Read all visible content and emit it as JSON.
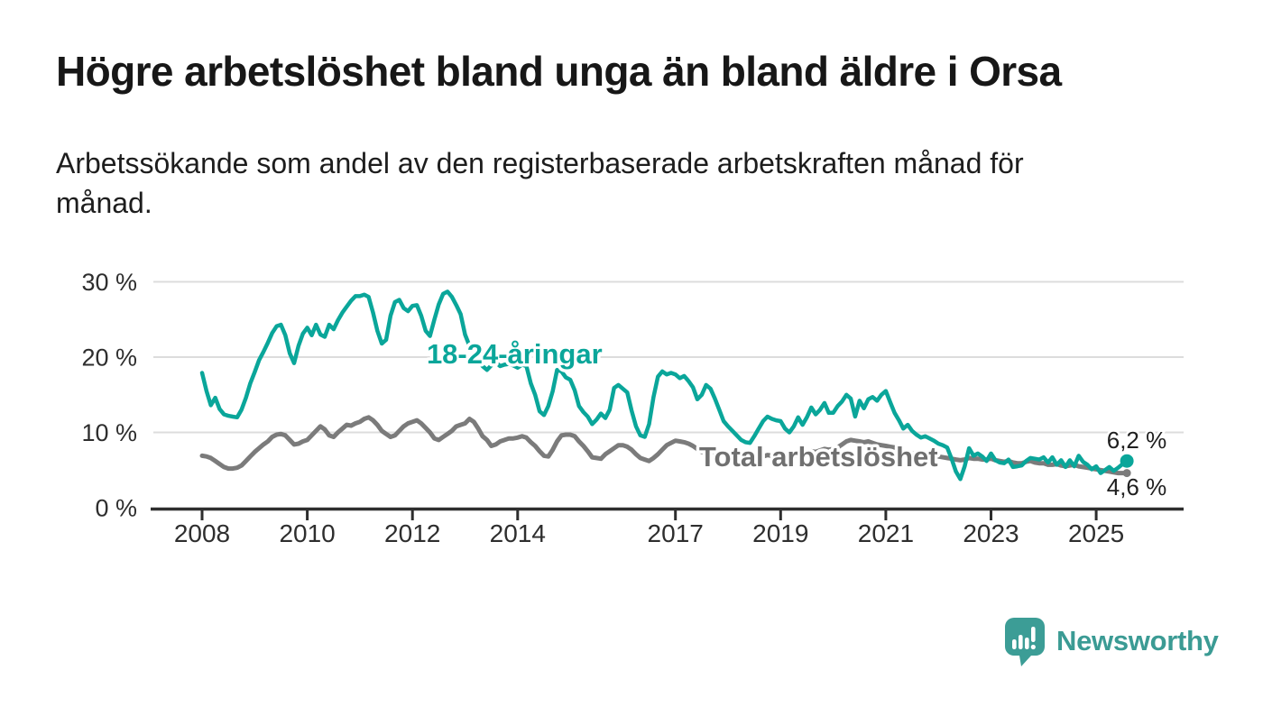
{
  "header": {
    "title": "Högre arbetslöshet bland unga än bland äldre i Orsa",
    "subtitle_line1": "Arbetssökande som andel av den registerbaserade arbetskraften månad för",
    "subtitle_line2": "månad."
  },
  "chart_data": {
    "type": "line",
    "unit": "%",
    "title": "Högre arbetslöshet bland unga än bland äldre i Orsa",
    "x_start_year": 2008,
    "points_per_year": 12,
    "xlim": [
      2007.85,
      2026.0
    ],
    "ylim": [
      0,
      32
    ],
    "grid": "horizontal",
    "grid_color": "#dcdcdc",
    "axis_color": "#2e2e2e",
    "tick_label_color": "#2e2e2e",
    "xticks": [
      {
        "value": 2008,
        "label": "2008"
      },
      {
        "value": 2010,
        "label": "2010"
      },
      {
        "value": 2012,
        "label": "2012"
      },
      {
        "value": 2014,
        "label": "2014"
      },
      {
        "value": 2017,
        "label": "2017"
      },
      {
        "value": 2019,
        "label": "2019"
      },
      {
        "value": 2021,
        "label": "2021"
      },
      {
        "value": 2023,
        "label": "2023"
      },
      {
        "value": 2025,
        "label": "2025"
      }
    ],
    "yticks": [
      {
        "value": 0,
        "label": "0 %"
      },
      {
        "value": 10,
        "label": "10 %"
      },
      {
        "value": 20,
        "label": "20 %"
      },
      {
        "value": 30,
        "label": "30 %"
      }
    ],
    "series": [
      {
        "name": "18-24-åringar",
        "color": "#0aa69a",
        "stroke_width": 4.5,
        "end_dot_radius": 7.5,
        "end_value_label": "6,2 %",
        "values": [
          17.9,
          15.5,
          13.6,
          14.6,
          13.1,
          12.4,
          12.2,
          12.1,
          12.0,
          13.0,
          14.6,
          16.5,
          18.0,
          19.6,
          20.7,
          21.9,
          23.2,
          24.1,
          24.3,
          22.9,
          20.5,
          19.2,
          21.5,
          23.1,
          23.9,
          22.9,
          24.3,
          23.0,
          22.7,
          24.3,
          23.7,
          24.9,
          25.9,
          26.7,
          27.5,
          28.1,
          28.1,
          28.3,
          28.0,
          25.9,
          23.5,
          21.8,
          22.3,
          25.5,
          27.3,
          27.6,
          26.5,
          26.1,
          26.8,
          26.9,
          25.5,
          23.5,
          22.8,
          25.0,
          27.0,
          28.4,
          28.7,
          28.0,
          26.9,
          25.7,
          23.0,
          21.5,
          20.5,
          19.5,
          18.8,
          18.3,
          18.9,
          19.3,
          18.8,
          19.0,
          19.1,
          18.9,
          18.6,
          19.0,
          18.8,
          16.5,
          15.0,
          12.8,
          12.3,
          13.5,
          15.5,
          18.3,
          18.1,
          17.3,
          17.0,
          15.6,
          13.5,
          12.7,
          12.1,
          11.1,
          11.7,
          12.5,
          11.9,
          13.0,
          15.9,
          16.3,
          15.8,
          15.3,
          12.9,
          10.8,
          9.6,
          9.4,
          11.1,
          14.7,
          17.4,
          18.1,
          17.7,
          17.9,
          17.7,
          17.2,
          17.5,
          16.8,
          16.0,
          14.4,
          15.0,
          16.3,
          15.8,
          14.5,
          13.0,
          11.5,
          10.8,
          10.2,
          9.6,
          9.0,
          8.7,
          8.6,
          9.5,
          10.5,
          11.5,
          12.1,
          11.8,
          11.6,
          11.5,
          10.5,
          10.0,
          10.8,
          12.0,
          11.0,
          12.0,
          13.3,
          12.4,
          13.0,
          13.9,
          12.6,
          12.6,
          13.5,
          14.1,
          15.0,
          14.5,
          12.1,
          14.2,
          13.2,
          14.4,
          14.7,
          14.2,
          15.0,
          15.5,
          14.0,
          12.6,
          11.6,
          10.5,
          11.0,
          10.2,
          9.7,
          9.3,
          9.5,
          9.2,
          8.9,
          8.5,
          8.3,
          8.0,
          6.5,
          4.8,
          3.8,
          5.5,
          7.9,
          6.9,
          7.2,
          6.8,
          6.2,
          7.2,
          6.3,
          6.0,
          5.9,
          6.4,
          5.4,
          5.5,
          5.6,
          6.2,
          6.6,
          6.5,
          6.4,
          6.7,
          6.0,
          6.7,
          5.7,
          6.3,
          5.4,
          6.3,
          5.5,
          6.9,
          6.1,
          5.7,
          5.1,
          5.5,
          4.6,
          5.0,
          5.4,
          4.9,
          5.3,
          5.8,
          6.2
        ]
      },
      {
        "name": "Total arbetslöshet",
        "color": "#7b7b7b",
        "stroke_width": 5,
        "end_dot_radius": 4.5,
        "end_value_label": "4,6 %",
        "values": [
          6.9,
          6.8,
          6.6,
          6.2,
          5.8,
          5.4,
          5.2,
          5.2,
          5.3,
          5.6,
          6.2,
          6.8,
          7.4,
          7.9,
          8.4,
          8.8,
          9.4,
          9.7,
          9.8,
          9.6,
          9.0,
          8.4,
          8.5,
          8.8,
          9.0,
          9.6,
          10.2,
          10.8,
          10.4,
          9.6,
          9.4,
          10.0,
          10.5,
          11.0,
          10.9,
          11.2,
          11.4,
          11.8,
          12.0,
          11.6,
          11.0,
          10.2,
          9.8,
          9.4,
          9.6,
          10.2,
          10.8,
          11.2,
          11.4,
          11.6,
          11.2,
          10.6,
          10.0,
          9.2,
          9.0,
          9.4,
          9.8,
          10.2,
          10.8,
          11.0,
          11.2,
          11.8,
          11.4,
          10.5,
          9.5,
          9.0,
          8.2,
          8.4,
          8.8,
          9.0,
          9.2,
          9.2,
          9.3,
          9.5,
          9.3,
          8.7,
          8.2,
          7.5,
          6.9,
          6.8,
          7.7,
          8.8,
          9.6,
          9.7,
          9.7,
          9.5,
          8.8,
          8.2,
          7.5,
          6.7,
          6.6,
          6.5,
          7.1,
          7.5,
          7.9,
          8.3,
          8.3,
          8.1,
          7.7,
          7.1,
          6.6,
          6.4,
          6.2,
          6.6,
          7.1,
          7.7,
          8.3,
          8.6,
          8.9,
          8.8,
          8.7,
          8.5,
          8.2,
          7.8,
          7.4,
          7.2,
          7.3,
          7.5,
          7.4,
          7.2,
          7.0,
          6.8,
          6.6,
          6.4,
          6.2,
          6.1,
          6.3,
          6.6,
          6.8,
          7.0,
          6.9,
          6.8,
          6.9,
          6.8,
          6.7,
          6.8,
          7.0,
          7.1,
          7.3,
          7.5,
          7.4,
          7.6,
          7.8,
          7.7,
          7.8,
          8.0,
          8.4,
          8.8,
          9.0,
          8.9,
          8.8,
          8.7,
          8.8,
          8.6,
          8.4,
          8.3,
          8.2,
          8.1,
          8.0,
          7.8,
          7.6,
          7.4,
          7.2,
          7.1,
          7.0,
          6.9,
          6.9,
          6.8,
          6.8,
          6.7,
          6.6,
          6.5,
          6.4,
          6.3,
          6.4,
          6.6,
          6.5,
          6.5,
          6.4,
          6.4,
          6.5,
          6.3,
          6.2,
          6.1,
          6.2,
          6.0,
          5.9,
          5.9,
          6.1,
          6.2,
          6.0,
          5.9,
          5.9,
          5.7,
          5.7,
          5.8,
          5.6,
          5.5,
          5.6,
          5.7,
          5.5,
          5.4,
          5.3,
          5.2,
          5.1,
          5.0,
          4.9,
          4.8,
          4.7,
          4.6,
          4.6,
          4.6
        ]
      }
    ],
    "series_labels": [
      {
        "text": "18-24-åringar",
        "x": 2012.27,
        "y": 19.16,
        "color": "#0aa69a"
      },
      {
        "text": "Total arbetslöshet",
        "x": 2017.45,
        "y": 5.51,
        "color": "#707070"
      }
    ],
    "end_value_labels": [
      {
        "text": "6,2 %",
        "x": 2025.2,
        "y": 7.9,
        "color": "#1f1f1f"
      },
      {
        "text": "4,6 %",
        "x": 2025.2,
        "y": 1.65,
        "color": "#1f1f1f"
      }
    ],
    "legend_position": "inline-labels"
  },
  "footer": {
    "brand": "Newsworthy",
    "brand_color": "#3b9b94",
    "logo_icon": "speech-bubble-bar-chart"
  }
}
